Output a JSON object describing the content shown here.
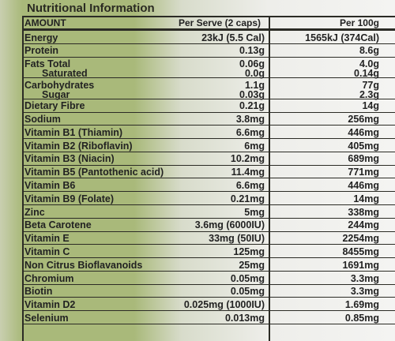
{
  "title": "Nutritional Information",
  "table": {
    "header": [
      "AMOUNT",
      "Per Serve (2 caps)",
      "Per 100g"
    ],
    "rows": [
      [
        "Energy",
        "23kJ (5.5 Cal)",
        "1565kJ (374Cal)"
      ],
      [
        "Protein",
        "0.13g",
        "8.6g"
      ],
      [
        [
          "Fats Total",
          "Saturated"
        ],
        [
          "0.06g",
          "0.0g"
        ],
        [
          "4.0g",
          "0.14g"
        ]
      ],
      [
        [
          "Carbohydrates",
          "Sugar"
        ],
        [
          "1.1g",
          "0.03g"
        ],
        [
          "77g",
          "2.3g"
        ]
      ],
      [
        "Dietary Fibre",
        "0.21g",
        "14g"
      ],
      [
        "Sodium",
        "3.8mg",
        "256mg"
      ],
      [
        "Vitamin B1 (Thiamin)",
        "6.6mg",
        "446mg"
      ],
      [
        "Vitamin B2 (Riboflavin)",
        "6mg",
        "405mg"
      ],
      [
        "Vitamin B3 (Niacin)",
        "10.2mg",
        "689mg"
      ],
      [
        "Vitamin B5 (Pantothenic acid)",
        "11.4mg",
        "771mg"
      ],
      [
        "Vitamin B6",
        "6.6mg",
        "446mg"
      ],
      [
        "Vitamin B9 (Folate)",
        "0.21mg",
        "14mg"
      ],
      [
        "Zinc",
        "5mg",
        "338mg"
      ],
      [
        "Beta Carotene",
        "3.6mg (6000IU)",
        "244mg"
      ],
      [
        "Vitamin E",
        "33mg (50IU)",
        "2254mg"
      ],
      [
        "Vitamin C",
        "125mg",
        "8455mg"
      ],
      [
        "Non Citrus Bioflavanoids",
        "25mg",
        "1691mg"
      ],
      [
        "Chromium",
        "0.05mg",
        "3.3mg"
      ],
      [
        "Biotin",
        "0.05mg",
        "3.3mg"
      ],
      [
        "Vitamin D2",
        "0.025mg (1000IU)",
        "1.69mg"
      ],
      [
        "Selenium",
        "0.013mg",
        "0.85mg"
      ]
    ]
  }
}
